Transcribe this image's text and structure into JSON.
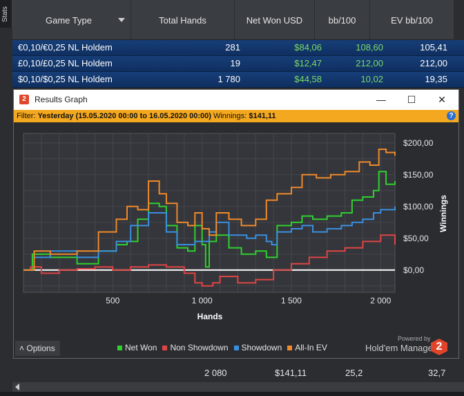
{
  "sidebar": {
    "stats_tab": "Stats"
  },
  "table": {
    "columns": [
      "Game Type",
      "Total Hands",
      "Net Won USD",
      "bb/100",
      "EV bb/100"
    ],
    "rows": [
      {
        "game": "€0,10/€0,25 NL Holdem",
        "hands": "281",
        "net_won": "$84,06",
        "bb100": "108,60",
        "evbb100": "105,41"
      },
      {
        "game": "£0,10/£0,25 NL Holdem",
        "hands": "19",
        "net_won": "$12,47",
        "bb100": "212,00",
        "evbb100": "212,00"
      },
      {
        "game": "$0,10/$0,25 NL Holdem",
        "hands": "1 780",
        "net_won": "$44,58",
        "bb100": "10,02",
        "evbb100": "19,35"
      }
    ],
    "totals": {
      "hands": "2 080",
      "net_won": "$141,11",
      "bb100": "25,2",
      "evbb100": "32,7"
    }
  },
  "window": {
    "title": "Results Graph",
    "minimize": "—",
    "maximize": "☐",
    "close": "✕",
    "filter_prefix": "Filter:",
    "filter_value": "Yesterday (15.05.2020 00:00 to 16.05.2020 00:00)",
    "winnings_label": "Winnings:",
    "winnings_value": "$141,11",
    "options_label": "Options",
    "powered_by": "Powered by",
    "brand": "Hold'em Manager",
    "app_icon": "2"
  },
  "colors": {
    "net_won": "#2fd12f",
    "non_showdown": "#e04545",
    "showdown": "#3a8fe0",
    "allin_ev": "#f08a2a"
  },
  "chart_data": {
    "type": "line",
    "xlabel": "Hands",
    "ylabel": "Winnings",
    "xlim": [
      0,
      2080
    ],
    "ylim": [
      -35,
      215
    ],
    "x_ticks": [
      500,
      1000,
      1500,
      2000
    ],
    "x_tick_labels": [
      "500",
      "1 000",
      "1 500",
      "2 000"
    ],
    "y_ticks": [
      0,
      50,
      100,
      150,
      200
    ],
    "y_tick_labels": [
      "$0,00",
      "$50,00",
      "$100,00",
      "$150,00",
      "$200,00"
    ],
    "grid": true,
    "legend_position": "bottom",
    "series": [
      {
        "name": "Net Won",
        "color_key": "net_won",
        "x": [
          0,
          50,
          150,
          300,
          420,
          520,
          580,
          640,
          700,
          760,
          800,
          860,
          920,
          960,
          1000,
          1020,
          1040,
          1080,
          1150,
          1220,
          1300,
          1360,
          1390,
          1420,
          1500,
          1560,
          1620,
          1700,
          1780,
          1840,
          1900,
          1960,
          1990,
          2030,
          2080
        ],
        "y": [
          0,
          25,
          20,
          10,
          30,
          40,
          45,
          80,
          105,
          100,
          70,
          35,
          30,
          70,
          40,
          5,
          45,
          55,
          35,
          25,
          30,
          20,
          20,
          70,
          75,
          85,
          80,
          85,
          90,
          110,
          115,
          125,
          155,
          135,
          140
        ]
      },
      {
        "name": "Non Showdown",
        "color_key": "non_showdown",
        "x": [
          0,
          40,
          100,
          200,
          300,
          400,
          500,
          600,
          700,
          800,
          900,
          960,
          1000,
          1060,
          1100,
          1200,
          1300,
          1400,
          1500,
          1600,
          1700,
          1800,
          1900,
          2000,
          2080
        ],
        "y": [
          0,
          5,
          -5,
          0,
          2,
          5,
          0,
          5,
          8,
          5,
          -5,
          -20,
          -25,
          -20,
          -10,
          -20,
          -15,
          0,
          10,
          20,
          30,
          35,
          45,
          55,
          40
        ]
      },
      {
        "name": "Showdown",
        "color_key": "showdown",
        "x": [
          0,
          60,
          150,
          300,
          420,
          520,
          600,
          700,
          800,
          860,
          960,
          1040,
          1080,
          1150,
          1250,
          1300,
          1360,
          1390,
          1420,
          1500,
          1560,
          1620,
          1700,
          1780,
          1840,
          1900,
          1960,
          2000,
          2080
        ],
        "y": [
          0,
          20,
          30,
          20,
          30,
          45,
          70,
          90,
          60,
          40,
          45,
          60,
          75,
          55,
          50,
          55,
          45,
          40,
          60,
          65,
          70,
          60,
          65,
          70,
          75,
          80,
          90,
          95,
          100
        ]
      },
      {
        "name": "All-In EV",
        "color_key": "allin_ev",
        "x": [
          0,
          60,
          150,
          300,
          420,
          520,
          580,
          640,
          700,
          760,
          800,
          860,
          920,
          960,
          1000,
          1040,
          1080,
          1150,
          1220,
          1300,
          1360,
          1420,
          1500,
          1560,
          1640,
          1720,
          1800,
          1880,
          1940,
          1990,
          2030,
          2080
        ],
        "y": [
          0,
          30,
          25,
          30,
          60,
          80,
          100,
          95,
          140,
          120,
          105,
          75,
          70,
          90,
          65,
          55,
          90,
          80,
          70,
          80,
          110,
          120,
          130,
          150,
          145,
          150,
          155,
          170,
          165,
          190,
          185,
          180
        ]
      }
    ]
  }
}
